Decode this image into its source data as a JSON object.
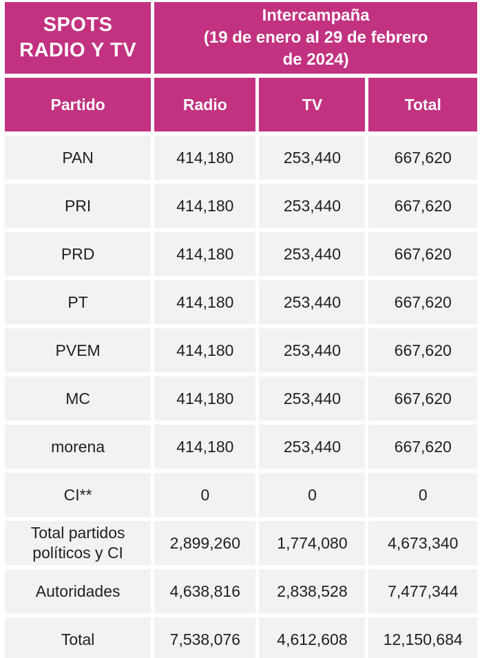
{
  "colors": {
    "header_bg": "#C23280",
    "header_text": "#FFFFFF",
    "row_bg": "#F2F2F2",
    "cell_text": "#1F1F1F",
    "page_bg": "#FFFFFF"
  },
  "header": {
    "title_line1": "SPOTS",
    "title_line2": "RADIO Y TV",
    "period_line1": "Intercampaña",
    "period_line2": "(19 de enero al 29 de febrero de 2024)"
  },
  "columns": [
    "Partido",
    "Radio",
    "TV",
    "Total"
  ],
  "chart_data": {
    "type": "table",
    "title": "SPOTS RADIO Y TV — Intercampaña (19 de enero al 29 de febrero de 2024)",
    "columns": [
      "Partido",
      "Radio",
      "TV",
      "Total"
    ],
    "rows": [
      {
        "partido": "PAN",
        "radio": "414,180",
        "tv": "253,440",
        "total": "667,620"
      },
      {
        "partido": "PRI",
        "radio": "414,180",
        "tv": "253,440",
        "total": "667,620"
      },
      {
        "partido": "PRD",
        "radio": "414,180",
        "tv": "253,440",
        "total": "667,620"
      },
      {
        "partido": "PT",
        "radio": "414,180",
        "tv": "253,440",
        "total": "667,620"
      },
      {
        "partido": "PVEM",
        "radio": "414,180",
        "tv": "253,440",
        "total": "667,620"
      },
      {
        "partido": "MC",
        "radio": "414,180",
        "tv": "253,440",
        "total": "667,620"
      },
      {
        "partido": "morena",
        "radio": "414,180",
        "tv": "253,440",
        "total": "667,620"
      },
      {
        "partido": "CI**",
        "radio": "0",
        "tv": "0",
        "total": "0"
      },
      {
        "partido": "Total partidos políticos y CI",
        "radio": "2,899,260",
        "tv": "1,774,080",
        "total": "4,673,340"
      },
      {
        "partido": "Autoridades",
        "radio": "4,638,816",
        "tv": "2,838,528",
        "total": "7,477,344"
      },
      {
        "partido": "Total",
        "radio": "7,538,076",
        "tv": "4,612,608",
        "total": "12,150,684"
      }
    ]
  }
}
